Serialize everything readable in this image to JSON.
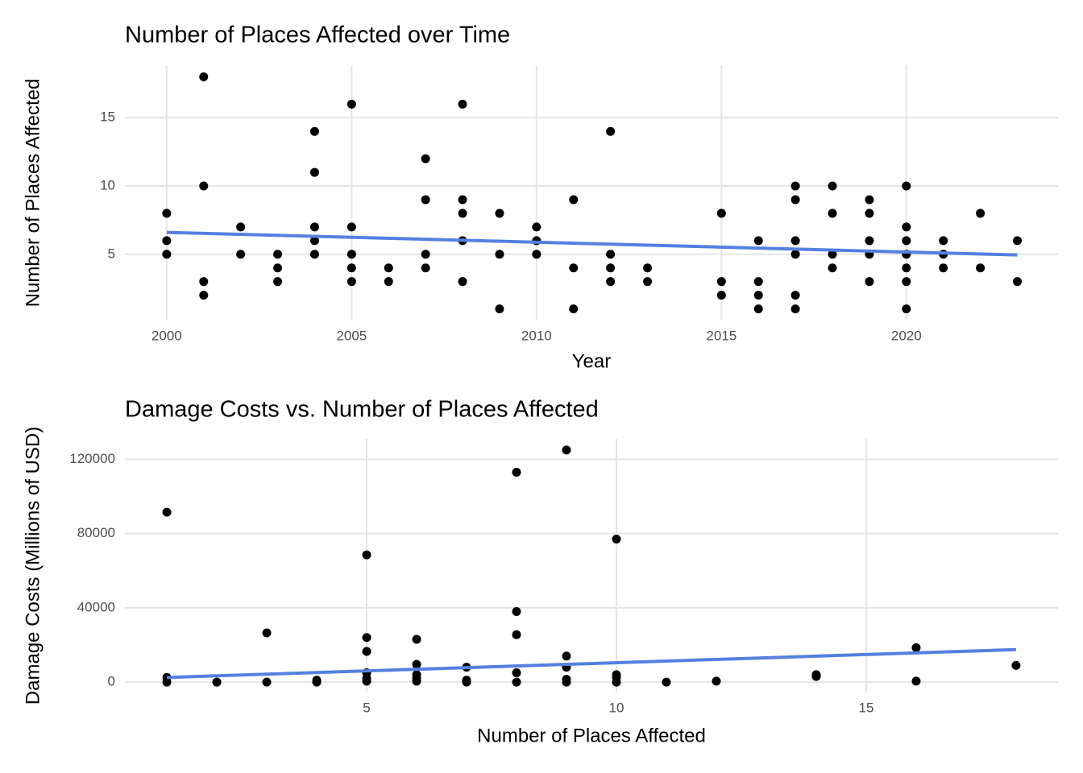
{
  "chart_data": [
    {
      "type": "scatter",
      "title": "Number of Places Affected over Time",
      "x_label": "Year",
      "y_label": "Number of Places Affected",
      "xlim": [
        1998.87,
        2024.1
      ],
      "ylim": [
        0.15,
        18.85
      ],
      "xticks": [
        2000,
        2005,
        2010,
        2015,
        2020
      ],
      "yticks": [
        5,
        10,
        15
      ],
      "grid": true,
      "series": [
        {
          "color": "#000000",
          "x": [
            2000,
            2000,
            2000,
            2001,
            2001,
            2001,
            2001,
            2002,
            2002,
            2003,
            2003,
            2003,
            2004,
            2004,
            2004,
            2004,
            2004,
            2005,
            2005,
            2005,
            2005,
            2005,
            2006,
            2006,
            2007,
            2007,
            2007,
            2007,
            2008,
            2008,
            2008,
            2008,
            2008,
            2009,
            2009,
            2009,
            2010,
            2010,
            2010,
            2011,
            2011,
            2011,
            2012,
            2012,
            2012,
            2012,
            2013,
            2013,
            2015,
            2015,
            2015,
            2016,
            2016,
            2016,
            2016,
            2017,
            2017,
            2017,
            2017,
            2017,
            2017,
            2018,
            2018,
            2018,
            2018,
            2019,
            2019,
            2019,
            2019,
            2019,
            2020,
            2020,
            2020,
            2020,
            2020,
            2020,
            2020,
            2021,
            2021,
            2021,
            2022,
            2022,
            2023,
            2023
          ],
          "values": [
            8,
            6,
            5,
            18,
            10,
            3,
            2,
            7,
            5,
            5,
            4,
            3,
            14,
            11,
            7,
            6,
            5,
            16,
            7,
            5,
            4,
            3,
            4,
            3,
            12,
            9,
            5,
            4,
            16,
            9,
            8,
            6,
            3,
            8,
            5,
            1,
            7,
            6,
            5,
            9,
            4,
            1,
            14,
            5,
            4,
            3,
            4,
            3,
            8,
            3,
            2,
            6,
            3,
            2,
            1,
            10,
            9,
            6,
            5,
            2,
            1,
            10,
            8,
            5,
            4,
            9,
            8,
            6,
            5,
            3,
            10,
            7,
            6,
            5,
            4,
            3,
            1,
            6,
            5,
            4,
            8,
            4,
            6,
            3
          ]
        }
      ],
      "trend": {
        "color": "#5580e0",
        "x": [
          2000,
          2023
        ],
        "values": [
          6.6,
          4.95
        ]
      }
    },
    {
      "type": "scatter",
      "title": "Damage Costs vs. Number of Places Affected",
      "x_label": "Number of Places Affected",
      "y_label": "Damage Costs (Millions of USD)",
      "xlim": [
        0.16,
        18.84
      ],
      "ylim": [
        -5600,
        131000
      ],
      "xticks": [
        5,
        10,
        15
      ],
      "yticks": [
        0,
        40000,
        80000,
        120000
      ],
      "grid": true,
      "series": [
        {
          "color": "#000000",
          "x": [
            1,
            1,
            1,
            2,
            2,
            3,
            3,
            4,
            4,
            5,
            5,
            5,
            5,
            5,
            5,
            6,
            6,
            6,
            6,
            6,
            7,
            7,
            7,
            8,
            8,
            8,
            8,
            8,
            9,
            9,
            9,
            9,
            9,
            10,
            10,
            10,
            10,
            11,
            12,
            14,
            14,
            16,
            16,
            18
          ],
          "values": [
            91500,
            2500,
            0,
            0,
            0,
            26500,
            0,
            1000,
            0,
            68500,
            24000,
            16500,
            5000,
            2000,
            500,
            23000,
            9500,
            4000,
            2000,
            500,
            8000,
            1000,
            0,
            113000,
            38000,
            25500,
            5000,
            0,
            125000,
            14000,
            8000,
            1500,
            0,
            77000,
            4000,
            2500,
            0,
            0,
            500,
            4000,
            3000,
            18500,
            500,
            9000
          ]
        }
      ],
      "trend": {
        "color": "#5580e0",
        "x": [
          1,
          18
        ],
        "values": [
          2500,
          17500
        ]
      }
    }
  ]
}
